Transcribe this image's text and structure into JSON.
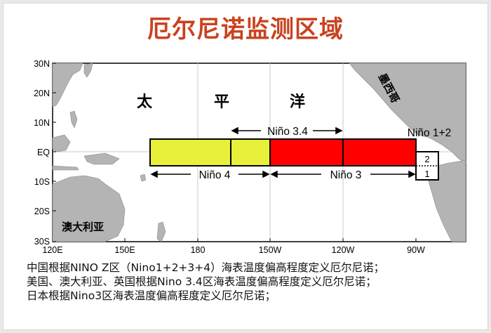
{
  "title": "厄尔尼诺监测区域",
  "map": {
    "y_ticks": [
      "30N",
      "20N",
      "10N",
      "EQ",
      "10S",
      "20S",
      "30S"
    ],
    "x_ticks": [
      "120E",
      "150E",
      "180",
      "150W",
      "120W",
      "90W"
    ],
    "labels": {
      "pacific_1": "太",
      "pacific_2": "平",
      "pacific_3": "洋",
      "mexico": "墨西哥",
      "australia": "澳大利亚"
    },
    "regions": {
      "nino4": "Niño 4",
      "nino34": "Niño 3.4",
      "nino3": "Niño 3",
      "nino12": "Niño 1+2",
      "box1": "1",
      "box2": "2"
    },
    "colors": {
      "nino4": "#e8f03a",
      "nino3": "#ff0000",
      "land": "#b4b4b4"
    }
  },
  "notes": [
    "中国根据NINO Z区（Nino1+2+3+4）海表温度偏高程度定义厄尔尼诺；",
    "美国、澳大利亚、英国根据Nino 3.4区海表温度偏高程度定义厄尔尼诺；",
    "日本根据Nino3区海表温度偏高程度定义厄尔尼诺；"
  ]
}
